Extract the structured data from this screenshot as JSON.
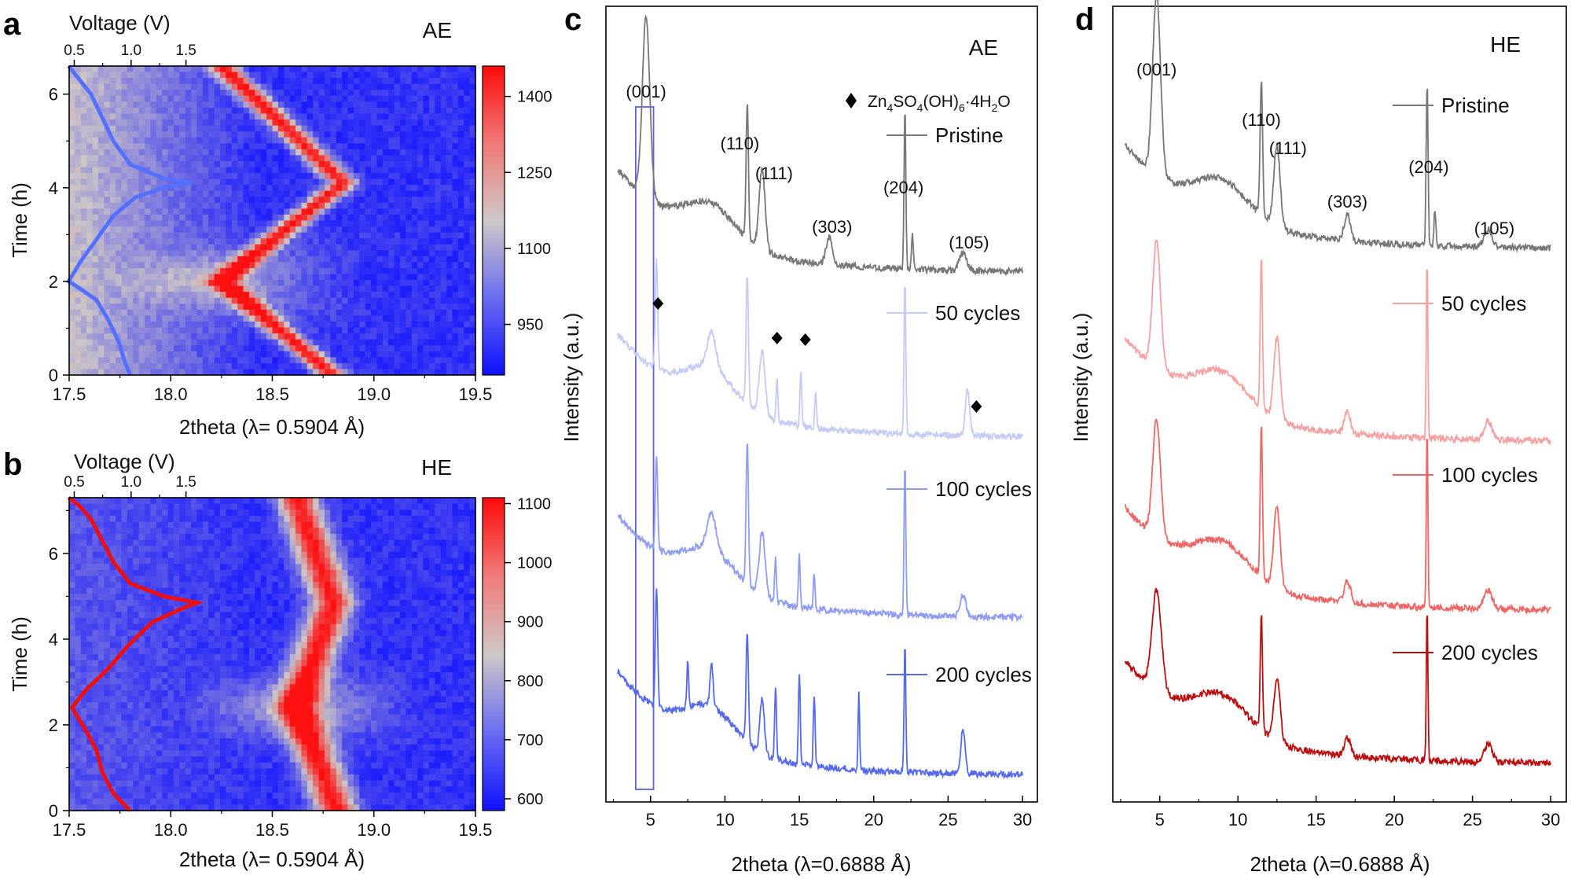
{
  "figure": {
    "panels": {
      "a": {
        "letter": "a",
        "tag": "AE"
      },
      "b": {
        "letter": "b",
        "tag": "HE"
      },
      "c": {
        "letter": "c",
        "tag": "AE"
      },
      "d": {
        "letter": "d",
        "tag": "HE"
      }
    }
  },
  "colors": {
    "map_low": "#1515ff",
    "map_mid": "#cfc8c8",
    "map_high": "#ff1010",
    "voltage_ae": "#5570ff",
    "voltage_he": "#ee1010",
    "axis": "#000000"
  },
  "chart_data": [
    {
      "id": "a",
      "type": "heatmap",
      "title": "AE",
      "xlabel": "2theta  (λ= 0.5904 Å)",
      "ylabel": "Time (h)",
      "top_axis_label": "Voltage (V)",
      "xlim": [
        17.5,
        19.5
      ],
      "ylim": [
        0,
        6.6
      ],
      "x_ticks": [
        "17.5",
        "18.0",
        "18.5",
        "19.0",
        "19.5"
      ],
      "x_tick_values": [
        17.5,
        18.0,
        18.5,
        19.0,
        19.5
      ],
      "y_ticks": [
        "0",
        "2",
        "4",
        "6"
      ],
      "y_tick_values": [
        0,
        2,
        4,
        6
      ],
      "top_ticks": [
        "0.5",
        "1.0",
        "1.5"
      ],
      "top_tick_values": [
        17.525,
        17.805,
        18.075
      ],
      "colorbar": {
        "ticks": [
          "950",
          "1100",
          "1250",
          "1400"
        ],
        "tick_values": [
          950,
          1100,
          1250,
          1400
        ],
        "range": [
          850,
          1460
        ]
      },
      "peak_path": {
        "time": [
          0,
          2,
          4.1,
          6.6
        ],
        "two_theta": [
          18.8,
          18.25,
          18.85,
          18.25
        ],
        "width": 0.05
      },
      "voltage_curve": {
        "time": [
          0,
          0.3,
          0.7,
          1.2,
          1.6,
          1.85,
          2.0,
          2.4,
          2.9,
          3.4,
          3.8,
          4.0,
          4.1,
          4.2,
          4.5,
          5.0,
          5.5,
          6.0,
          6.3,
          6.6
        ],
        "voltage": [
          1.0,
          0.95,
          0.9,
          0.8,
          0.7,
          0.55,
          0.45,
          0.55,
          0.7,
          0.85,
          1.05,
          1.3,
          1.55,
          1.3,
          1.0,
          0.85,
          0.75,
          0.65,
          0.55,
          0.45
        ]
      }
    },
    {
      "id": "b",
      "type": "heatmap",
      "title": "HE",
      "xlabel": "2theta  (λ= 0.5904 Å)",
      "ylabel": "Time (h)",
      "top_axis_label": "Voltage (V)",
      "xlim": [
        17.5,
        19.5
      ],
      "ylim": [
        0,
        7.3
      ],
      "x_ticks": [
        "17.5",
        "18.0",
        "18.5",
        "19.0",
        "19.5"
      ],
      "x_tick_values": [
        17.5,
        18.0,
        18.5,
        19.0,
        19.5
      ],
      "y_ticks": [
        "0",
        "2",
        "4",
        "6"
      ],
      "y_tick_values": [
        0,
        2,
        4,
        6
      ],
      "top_ticks": [
        "0.5",
        "1.0",
        "1.5"
      ],
      "top_tick_values": [
        17.525,
        17.805,
        18.075
      ],
      "colorbar": {
        "ticks": [
          "600",
          "700",
          "800",
          "900",
          "1000",
          "1100"
        ],
        "tick_values": [
          600,
          700,
          800,
          900,
          1000,
          1100
        ],
        "range": [
          580,
          1110
        ]
      },
      "peak_path": {
        "time": [
          0,
          2.4,
          4.85,
          7.3
        ],
        "two_theta": [
          18.82,
          18.62,
          18.8,
          18.62
        ],
        "width": 0.07
      },
      "voltage_curve": {
        "time": [
          0,
          0.4,
          0.9,
          1.4,
          1.8,
          2.1,
          2.4,
          2.8,
          3.3,
          3.9,
          4.4,
          4.7,
          4.85,
          5.0,
          5.3,
          5.8,
          6.3,
          6.8,
          7.1,
          7.3
        ],
        "voltage": [
          1.0,
          0.85,
          0.75,
          0.7,
          0.62,
          0.55,
          0.48,
          0.6,
          0.8,
          1.0,
          1.2,
          1.45,
          1.6,
          1.3,
          1.0,
          0.85,
          0.75,
          0.65,
          0.55,
          0.45
        ]
      }
    },
    {
      "id": "c",
      "type": "line",
      "title": "AE",
      "xlabel": "2theta  (λ=0.6888 Å)",
      "ylabel": "Intensity (a.u.)",
      "xlim": [
        2,
        31
      ],
      "x_ticks": [
        "5",
        "10",
        "15",
        "20",
        "25",
        "30"
      ],
      "x_tick_values": [
        5,
        10,
        15,
        20,
        25,
        30
      ],
      "highlight_box_x": [
        4.0,
        5.2
      ],
      "legend_symbol_label": "Zn4SO4(OH)6·4H2O",
      "series": [
        {
          "name": "Pristine",
          "color": "#777777",
          "offset": 3.0,
          "peaks": [
            [
              4.7,
              1.0,
              0.25
            ],
            [
              11.5,
              0.75,
              0.08
            ],
            [
              12.5,
              0.45,
              0.2
            ],
            [
              17.0,
              0.15,
              0.2
            ],
            [
              22.1,
              0.9,
              0.06
            ],
            [
              22.6,
              0.2,
              0.06
            ],
            [
              26.0,
              0.1,
              0.25
            ]
          ]
        },
        {
          "name": "50 cycles",
          "color": "#c5cbf7",
          "offset": 2.0,
          "peaks": [
            [
              5.4,
              0.6,
              0.08
            ],
            [
              9.1,
              0.2,
              0.3
            ],
            [
              11.5,
              0.7,
              0.08
            ],
            [
              12.5,
              0.35,
              0.2
            ],
            [
              13.5,
              0.25,
              0.06
            ],
            [
              15.1,
              0.3,
              0.06
            ],
            [
              16.1,
              0.2,
              0.06
            ],
            [
              22.1,
              0.85,
              0.06
            ],
            [
              26.3,
              0.25,
              0.15
            ]
          ]
        },
        {
          "name": "100 cycles",
          "color": "#8f9cf2",
          "offset": 1.0,
          "peaks": [
            [
              5.4,
              0.5,
              0.08
            ],
            [
              9.1,
              0.2,
              0.3
            ],
            [
              11.5,
              0.8,
              0.08
            ],
            [
              12.5,
              0.35,
              0.2
            ],
            [
              13.4,
              0.25,
              0.06
            ],
            [
              15.0,
              0.28,
              0.06
            ],
            [
              16.0,
              0.2,
              0.06
            ],
            [
              22.1,
              0.85,
              0.06
            ],
            [
              26.0,
              0.12,
              0.2
            ]
          ]
        },
        {
          "name": "200 cycles",
          "color": "#5569ec",
          "offset": 0.0,
          "peaks": [
            [
              5.4,
              0.65,
              0.08
            ],
            [
              7.5,
              0.25,
              0.06
            ],
            [
              9.1,
              0.25,
              0.1
            ],
            [
              11.5,
              0.6,
              0.08
            ],
            [
              12.5,
              0.3,
              0.15
            ],
            [
              13.4,
              0.4,
              0.06
            ],
            [
              15.0,
              0.5,
              0.06
            ],
            [
              16.0,
              0.4,
              0.06
            ],
            [
              19.0,
              0.45,
              0.05
            ],
            [
              22.1,
              0.7,
              0.06
            ],
            [
              26.0,
              0.25,
              0.15
            ]
          ]
        }
      ],
      "peak_labels": [
        {
          "text": "(001)",
          "x": 4.7
        },
        {
          "text": "(110)",
          "x": 11.0
        },
        {
          "text": "(111)",
          "x": 13.3
        },
        {
          "text": "(303)",
          "x": 17.2
        },
        {
          "text": "(204)",
          "x": 22.0
        },
        {
          "text": "(105)",
          "x": 26.4
        }
      ],
      "diamond_markers": [
        {
          "x": 5.5,
          "series": "50 cycles"
        },
        {
          "x": 13.5,
          "series": "50 cycles"
        },
        {
          "x": 15.4,
          "series": "50 cycles"
        },
        {
          "x": 26.9,
          "series": "50 cycles"
        }
      ]
    },
    {
      "id": "d",
      "type": "line",
      "title": "HE",
      "xlabel": "2theta  (λ=0.6888 Å)",
      "ylabel": "Intensity (a.u.)",
      "xlim": [
        2,
        31
      ],
      "x_ticks": [
        "5",
        "10",
        "15",
        "20",
        "25",
        "30"
      ],
      "x_tick_values": [
        5,
        10,
        15,
        20,
        25,
        30
      ],
      "series": [
        {
          "name": "Pristine",
          "color": "#777777",
          "offset": 3.0,
          "peaks": [
            [
              4.8,
              1.0,
              0.25
            ],
            [
              11.5,
              0.75,
              0.08
            ],
            [
              12.5,
              0.45,
              0.2
            ],
            [
              17.0,
              0.15,
              0.2
            ],
            [
              22.1,
              0.9,
              0.06
            ],
            [
              22.6,
              0.2,
              0.06
            ],
            [
              26.0,
              0.1,
              0.25
            ]
          ]
        },
        {
          "name": "50 cycles",
          "color": "#f6a1a1",
          "offset": 2.0,
          "peaks": [
            [
              4.8,
              0.7,
              0.25
            ],
            [
              11.5,
              0.85,
              0.07
            ],
            [
              12.5,
              0.45,
              0.2
            ],
            [
              17.0,
              0.12,
              0.2
            ],
            [
              22.1,
              1.0,
              0.05
            ],
            [
              26.0,
              0.1,
              0.25
            ]
          ]
        },
        {
          "name": "100 cycles",
          "color": "#ef6565",
          "offset": 1.0,
          "peaks": [
            [
              4.8,
              0.65,
              0.25
            ],
            [
              11.5,
              0.85,
              0.07
            ],
            [
              12.5,
              0.45,
              0.2
            ],
            [
              17.0,
              0.12,
              0.2
            ],
            [
              22.1,
              1.0,
              0.05
            ],
            [
              26.0,
              0.1,
              0.25
            ]
          ]
        },
        {
          "name": "200 cycles",
          "color": "#bb0f0f",
          "offset": 0.0,
          "peaks": [
            [
              4.8,
              0.55,
              0.3
            ],
            [
              11.5,
              0.65,
              0.07
            ],
            [
              12.5,
              0.35,
              0.2
            ],
            [
              17.0,
              0.1,
              0.2
            ],
            [
              22.1,
              0.85,
              0.05
            ],
            [
              26.0,
              0.1,
              0.25
            ]
          ]
        }
      ],
      "peak_labels": [
        {
          "text": "(001)",
          "x": 4.8
        },
        {
          "text": "(110)",
          "x": 11.5
        },
        {
          "text": "(111)",
          "x": 13.2
        },
        {
          "text": "(303)",
          "x": 17.0
        },
        {
          "text": "(204)",
          "x": 22.2
        },
        {
          "text": "(105)",
          "x": 26.4
        }
      ]
    }
  ]
}
